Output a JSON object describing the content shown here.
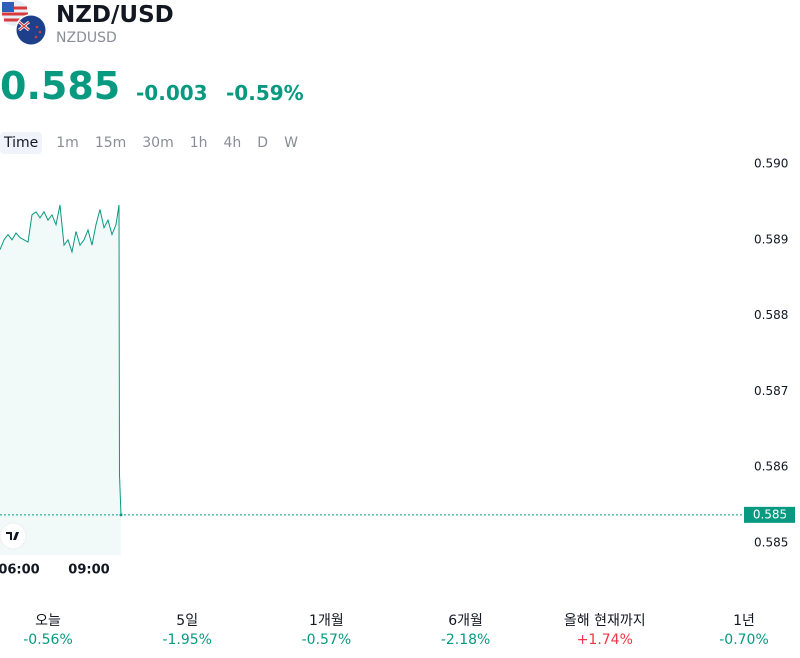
{
  "header": {
    "title": "NZD/USD",
    "symbol": "NZDUSD"
  },
  "quote": {
    "price": "0.585",
    "change": "-0.003",
    "change_percent": "-0.59%"
  },
  "intervals": [
    "Time",
    "1m",
    "15m",
    "30m",
    "1h",
    "4h",
    "D",
    "W"
  ],
  "chart_data": {
    "type": "area",
    "color": "#089981",
    "x": [
      5.186,
      5.357,
      5.529,
      5.7,
      5.871,
      6.043,
      6.214,
      6.386,
      6.557,
      6.729,
      6.9,
      7.071,
      7.243,
      7.414,
      7.586,
      7.757,
      7.929,
      8.1,
      8.271,
      8.443,
      8.614,
      8.786,
      8.957,
      9.129,
      9.3,
      9.471,
      9.643,
      9.814,
      9.986,
      10.157,
      10.286,
      10.307,
      10.371
    ],
    "values": [
      0.58887,
      0.589,
      0.58907,
      0.589,
      0.58909,
      0.58903,
      0.589,
      0.58897,
      0.58933,
      0.58937,
      0.58929,
      0.58937,
      0.58926,
      0.58933,
      0.5892,
      0.58946,
      0.58893,
      0.589,
      0.58884,
      0.58911,
      0.58893,
      0.589,
      0.58913,
      0.58893,
      0.5892,
      0.5894,
      0.58916,
      0.58926,
      0.58907,
      0.5892,
      0.58946,
      0.5859,
      0.58537
    ],
    "xlim": [
      5.186,
      36.9
    ],
    "xticks": [
      {
        "value": 6,
        "label": "06:00"
      },
      {
        "value": 9,
        "label": "09:00"
      }
    ],
    "ylim": [
      0.58484,
      0.59008
    ],
    "yticks": [
      {
        "value": 0.59,
        "label": "0.590"
      },
      0.589,
      0.588,
      0.587,
      0.586,
      0.585
    ],
    "last_price": {
      "value": 0.58537,
      "label": "0.585"
    }
  },
  "performance": [
    {
      "label": "오늘",
      "value": "-0.56%",
      "color": "#089981"
    },
    {
      "label": "5일",
      "value": "-1.95%",
      "color": "#089981"
    },
    {
      "label": "1개월",
      "value": "-0.57%",
      "color": "#089981"
    },
    {
      "label": "6개월",
      "value": "-2.18%",
      "color": "#089981"
    },
    {
      "label": "올해 현재까지",
      "value": "+1.74%",
      "color": "#f23645"
    },
    {
      "label": "1년",
      "value": "-0.70%",
      "color": "#089981"
    }
  ]
}
